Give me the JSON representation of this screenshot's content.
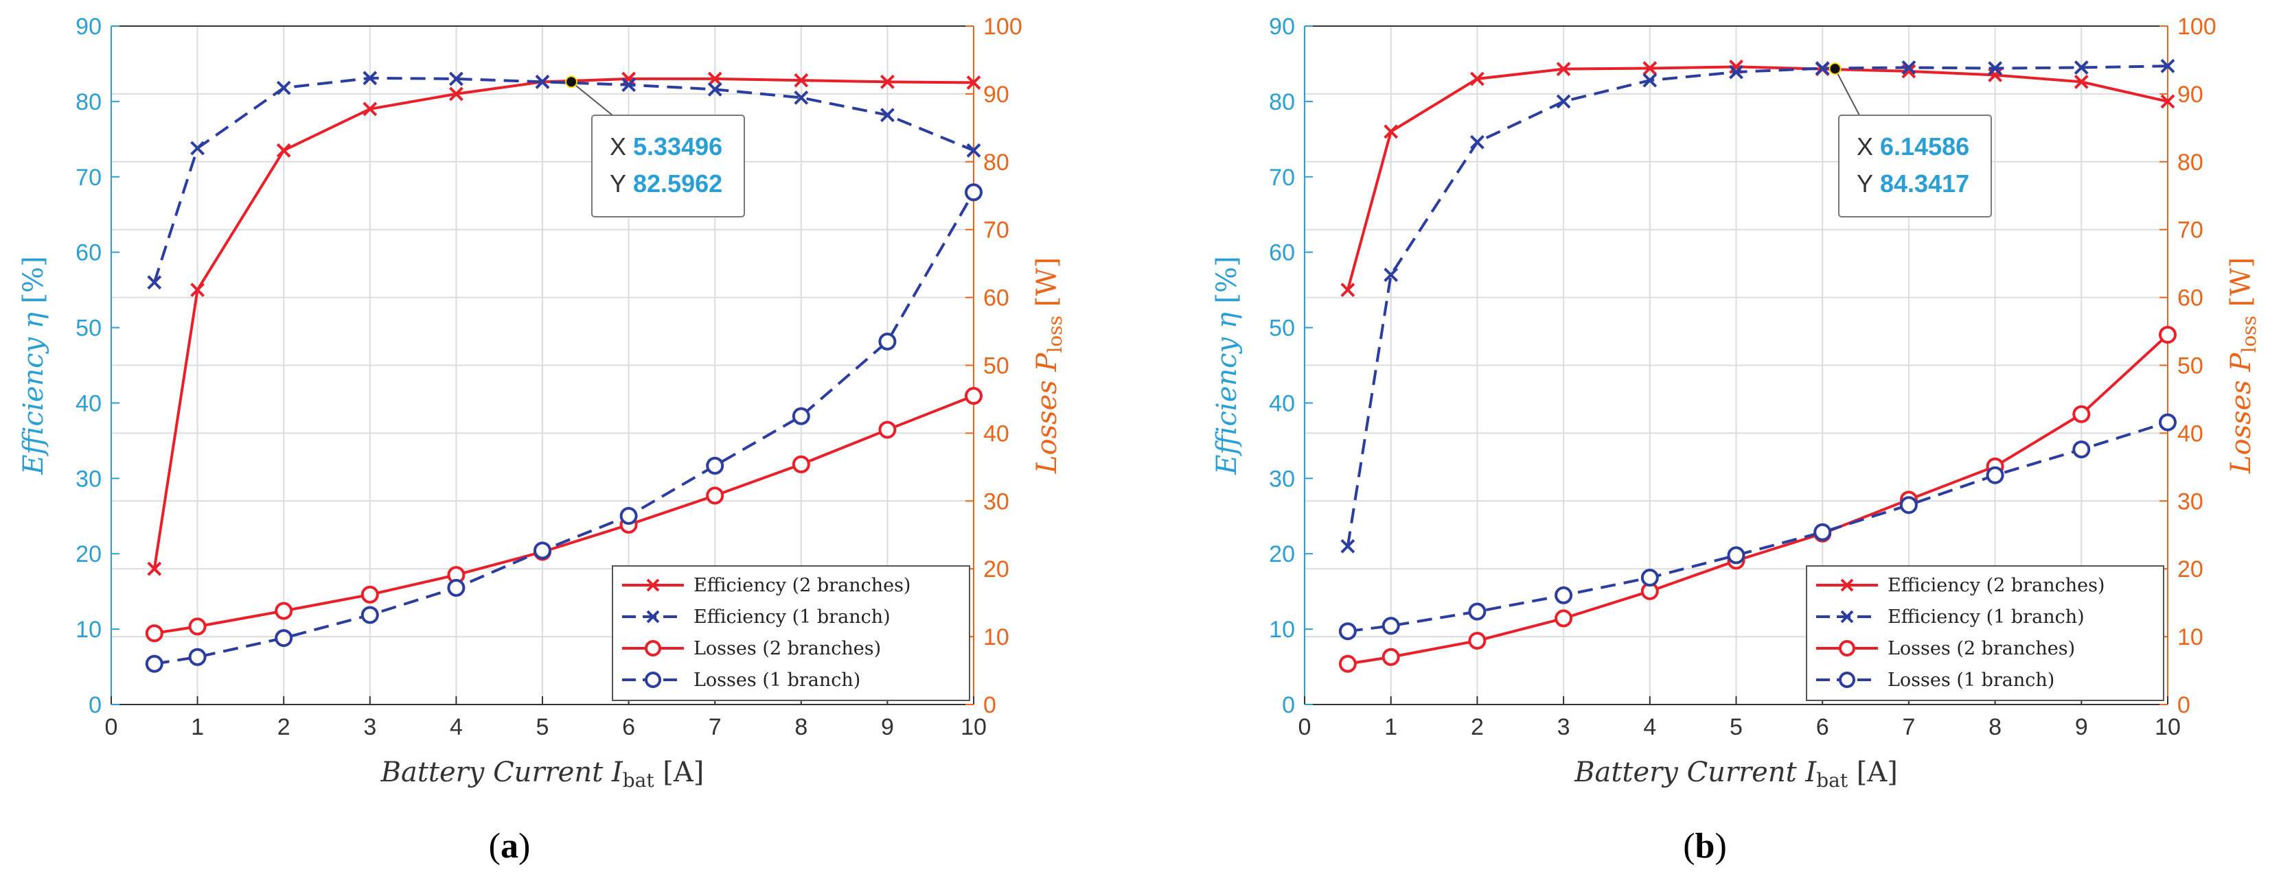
{
  "colors": {
    "left_axis": "#2a9fd6",
    "right_axis": "#e8651a",
    "red": "#e8202a",
    "blue": "#2b3ea0",
    "grid": "#dcdcdc"
  },
  "chart_data": [
    {
      "type": "line",
      "panel_label": "(a)",
      "panel_letter": "a",
      "xlabel": "Battery Current I_bat [A]",
      "xlabel_text": "Battery Current",
      "xlabel_var": "I",
      "xlabel_sub": "bat",
      "xlabel_unit": "[A]",
      "ylabel_left": "Efficiency η [%]",
      "ylabel_left_text": "Efficiency η",
      "ylabel_left_unit": "[%]",
      "ylabel_right": "Losses P_loss [W]",
      "ylabel_right_text": "Losses P",
      "ylabel_right_sub": "loss",
      "ylabel_right_unit": "[W]",
      "xlim": [
        0,
        10
      ],
      "ylim_left": [
        0,
        90
      ],
      "ylim_right": [
        0,
        100
      ],
      "x_ticks": [
        "0",
        "1",
        "2",
        "3",
        "4",
        "5",
        "6",
        "7",
        "8",
        "9",
        "10"
      ],
      "y_left_ticks": [
        "0",
        "10",
        "20",
        "30",
        "40",
        "50",
        "60",
        "70",
        "80",
        "90"
      ],
      "y_right_ticks": [
        "0",
        "10",
        "20",
        "30",
        "40",
        "50",
        "60",
        "70",
        "80",
        "90",
        "100"
      ],
      "grid": true,
      "legend_position": "bottom-right",
      "series": [
        {
          "name": "Efficiency (2 branches)",
          "axis": "left",
          "color": "red",
          "dash": "solid",
          "marker": "x",
          "x": [
            0.5,
            1,
            2,
            3,
            4,
            5,
            6,
            7,
            8,
            9,
            10
          ],
          "y": [
            18,
            55,
            73.5,
            79,
            81,
            82.6,
            83,
            83,
            82.8,
            82.6,
            82.5
          ]
        },
        {
          "name": "Efficiency (1 branch)",
          "axis": "left",
          "color": "blue",
          "dash": "dashed",
          "marker": "x",
          "x": [
            0.5,
            1,
            2,
            3,
            4,
            5,
            6,
            7,
            8,
            9,
            10
          ],
          "y": [
            56,
            73.8,
            81.8,
            83.1,
            83,
            82.6,
            82.2,
            81.6,
            80.5,
            78.2,
            73.5
          ]
        },
        {
          "name": "Losses (2 branches)",
          "axis": "right",
          "color": "red",
          "dash": "solid",
          "marker": "o",
          "x": [
            0.5,
            1,
            2,
            3,
            4,
            5,
            6,
            7,
            8,
            9,
            10
          ],
          "y": [
            10.5,
            11.5,
            13.8,
            16.2,
            19.1,
            22.5,
            26.5,
            30.8,
            35.4,
            40.5,
            45.5
          ]
        },
        {
          "name": "Losses (1 branch)",
          "axis": "right",
          "color": "blue",
          "dash": "dashed",
          "marker": "o",
          "x": [
            0.5,
            1,
            2,
            3,
            4,
            5,
            6,
            7,
            8,
            9,
            10
          ],
          "y": [
            6,
            7,
            9.8,
            13.2,
            17.2,
            22.7,
            27.8,
            35.2,
            42.5,
            53.5,
            75.5
          ]
        }
      ],
      "datatip": {
        "x": 5.33496,
        "y": 82.5962,
        "x_text": "5.33496",
        "y_text": "82.5962",
        "x_label": "X",
        "y_label": "Y"
      }
    },
    {
      "type": "line",
      "panel_label": "(b)",
      "panel_letter": "b",
      "xlabel": "Battery Current I_bat [A]",
      "xlabel_text": "Battery Current",
      "xlabel_var": "I",
      "xlabel_sub": "bat",
      "xlabel_unit": "[A]",
      "ylabel_left": "Efficiency η [%]",
      "ylabel_left_text": "Efficiency η",
      "ylabel_left_unit": "[%]",
      "ylabel_right": "Losses P_loss [W]",
      "ylabel_right_text": "Losses P",
      "ylabel_right_sub": "loss",
      "ylabel_right_unit": "[W]",
      "xlim": [
        0,
        10
      ],
      "ylim_left": [
        0,
        90
      ],
      "ylim_right": [
        0,
        100
      ],
      "x_ticks": [
        "0",
        "1",
        "2",
        "3",
        "4",
        "5",
        "6",
        "7",
        "8",
        "9",
        "10"
      ],
      "y_left_ticks": [
        "0",
        "10",
        "20",
        "30",
        "40",
        "50",
        "60",
        "70",
        "80",
        "90"
      ],
      "y_right_ticks": [
        "0",
        "10",
        "20",
        "30",
        "40",
        "50",
        "60",
        "70",
        "80",
        "90",
        "100"
      ],
      "grid": true,
      "legend_position": "bottom-right",
      "series": [
        {
          "name": "Efficiency (2 branches)",
          "axis": "left",
          "color": "red",
          "dash": "solid",
          "marker": "x",
          "x": [
            0.5,
            1,
            2,
            3,
            4,
            5,
            6,
            7,
            8,
            9,
            10
          ],
          "y": [
            55,
            76,
            83,
            84.3,
            84.4,
            84.6,
            84.3,
            84,
            83.5,
            82.6,
            80
          ]
        },
        {
          "name": "Efficiency (1 branch)",
          "axis": "left",
          "color": "blue",
          "dash": "dashed",
          "marker": "x",
          "x": [
            0.5,
            1,
            2,
            3,
            4,
            5,
            6,
            7,
            8,
            9,
            10
          ],
          "y": [
            21,
            57,
            74.6,
            80,
            82.8,
            83.9,
            84.4,
            84.5,
            84.4,
            84.5,
            84.7
          ]
        },
        {
          "name": "Losses (2 branches)",
          "axis": "right",
          "color": "red",
          "dash": "solid",
          "marker": "o",
          "x": [
            0.5,
            1,
            2,
            3,
            4,
            5,
            6,
            7,
            8,
            9,
            10
          ],
          "y": [
            6,
            7,
            9.4,
            12.7,
            16.7,
            21.2,
            25.2,
            30.2,
            35.1,
            42.8,
            54.5
          ]
        },
        {
          "name": "Losses (1 branch)",
          "axis": "right",
          "color": "blue",
          "dash": "dashed",
          "marker": "o",
          "x": [
            0.5,
            1,
            2,
            3,
            4,
            5,
            6,
            7,
            8,
            9,
            10
          ],
          "y": [
            10.8,
            11.6,
            13.7,
            16.1,
            18.7,
            22,
            25.4,
            29.4,
            33.8,
            37.6,
            41.6
          ]
        }
      ],
      "datatip": {
        "x": 6.14586,
        "y": 84.3417,
        "x_text": "6.14586",
        "y_text": "84.3417",
        "x_label": "X",
        "y_label": "Y"
      }
    }
  ]
}
